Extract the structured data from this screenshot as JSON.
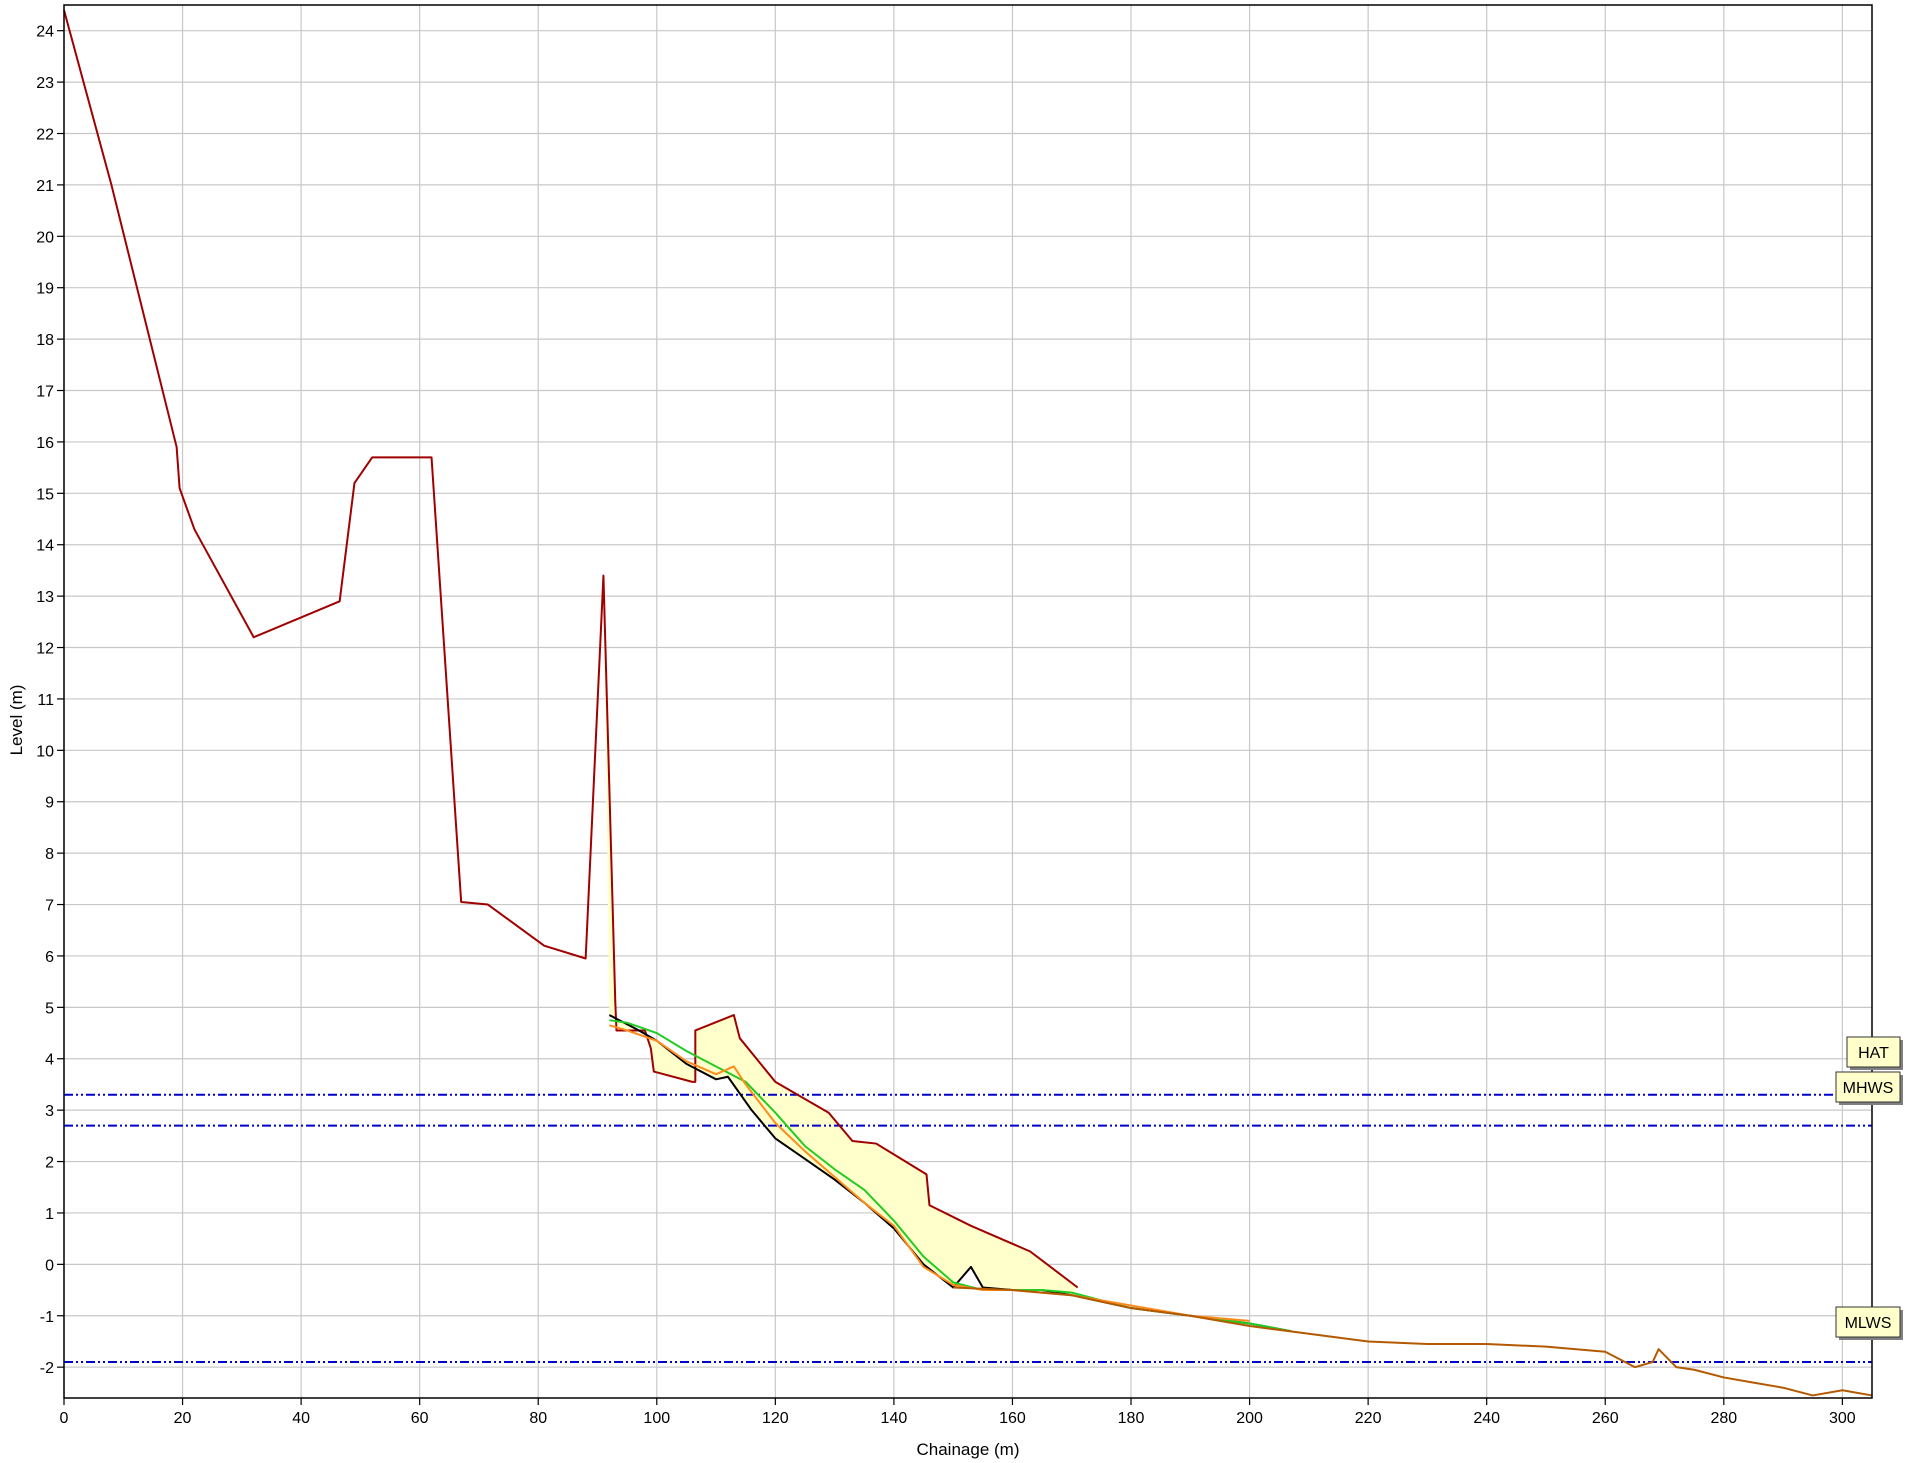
{
  "chart_data": {
    "type": "line",
    "xlabel": "Chainage (m)",
    "ylabel": "Level (m)",
    "xlim": [
      0,
      305
    ],
    "ylim": [
      -2.6,
      24.5
    ],
    "xticks": [
      0,
      20,
      40,
      60,
      80,
      100,
      120,
      140,
      160,
      180,
      200,
      220,
      240,
      260,
      280,
      300
    ],
    "yticks": [
      -2,
      -1,
      0,
      1,
      2,
      3,
      4,
      5,
      6,
      7,
      8,
      9,
      10,
      11,
      12,
      13,
      14,
      15,
      16,
      17,
      18,
      19,
      20,
      21,
      22,
      23,
      24
    ],
    "grid": true,
    "tide_levels": [
      {
        "label": "HAT",
        "value": 3.3,
        "color": "#0000cc"
      },
      {
        "label": "MHWS",
        "value": 2.7,
        "color": "#0000cc"
      },
      {
        "label": "MLWS",
        "value": -1.9,
        "color": "#0000cc"
      }
    ],
    "envelope_fill": "#ffffcc",
    "series": [
      {
        "color": "#a00000",
        "x": [
          0,
          8,
          19,
          19.5,
          22,
          32,
          46.5,
          49,
          52,
          62,
          67,
          71.5,
          81,
          88,
          91,
          93,
          93.2,
          98,
          99,
          99.5,
          106,
          106.5,
          106.5,
          113,
          114,
          120,
          129,
          133,
          137,
          145.5,
          146,
          153,
          163,
          171
        ],
        "y": [
          24.4,
          21,
          15.9,
          15.1,
          14.3,
          12.2,
          12.9,
          15.2,
          15.7,
          15.7,
          7.05,
          7.0,
          6.2,
          5.95,
          13.4,
          5.1,
          4.55,
          4.55,
          4.2,
          3.75,
          3.55,
          3.55,
          4.55,
          4.85,
          4.4,
          3.55,
          2.95,
          2.4,
          2.35,
          1.75,
          1.15,
          0.75,
          0.25,
          -0.45
        ]
      },
      {
        "color": "#000000",
        "x": [
          92,
          97,
          100,
          105,
          110,
          112,
          116,
          120,
          125,
          130,
          135,
          140,
          145,
          150,
          153,
          155,
          160,
          165,
          170,
          180,
          190,
          200,
          207
        ],
        "y": [
          4.85,
          4.55,
          4.35,
          3.9,
          3.6,
          3.65,
          3.0,
          2.45,
          2.05,
          1.65,
          1.2,
          0.7,
          0.0,
          -0.45,
          -0.05,
          -0.45,
          -0.5,
          -0.5,
          -0.6,
          -0.85,
          -1.0,
          -1.15,
          -1.3
        ]
      },
      {
        "color": "#22cc22",
        "x": [
          92,
          95,
          100,
          105,
          110,
          115,
          120,
          125,
          130,
          135,
          140,
          145,
          150,
          155,
          160,
          165,
          170,
          180,
          190,
          200,
          207
        ],
        "y": [
          4.75,
          4.7,
          4.5,
          4.15,
          3.85,
          3.55,
          2.95,
          2.3,
          1.85,
          1.45,
          0.85,
          0.15,
          -0.35,
          -0.5,
          -0.5,
          -0.5,
          -0.55,
          -0.85,
          -1.0,
          -1.15,
          -1.3
        ]
      },
      {
        "color": "#ff8c1a",
        "x": [
          92,
          95,
          100,
          105,
          110,
          113,
          115,
          120,
          125,
          130,
          135,
          140,
          145,
          150,
          155,
          160,
          165,
          170,
          180,
          190,
          200
        ],
        "y": [
          4.65,
          4.55,
          4.35,
          3.95,
          3.7,
          3.85,
          3.5,
          2.75,
          2.2,
          1.7,
          1.2,
          0.75,
          -0.05,
          -0.4,
          -0.5,
          -0.5,
          -0.55,
          -0.6,
          -0.8,
          -1.0,
          -1.1
        ]
      },
      {
        "color": "#b35a00",
        "x": [
          150,
          160,
          170,
          180,
          190,
          200,
          210,
          220,
          230,
          240,
          250,
          260,
          265,
          268,
          269,
          272,
          275,
          280,
          285,
          290,
          295,
          300,
          305
        ],
        "y": [
          -0.45,
          -0.5,
          -0.6,
          -0.85,
          -1.0,
          -1.2,
          -1.35,
          -1.5,
          -1.55,
          -1.55,
          -1.6,
          -1.7,
          -2.0,
          -1.9,
          -1.65,
          -2.0,
          -2.05,
          -2.2,
          -2.3,
          -2.4,
          -2.55,
          -2.45,
          -2.55
        ]
      }
    ]
  }
}
